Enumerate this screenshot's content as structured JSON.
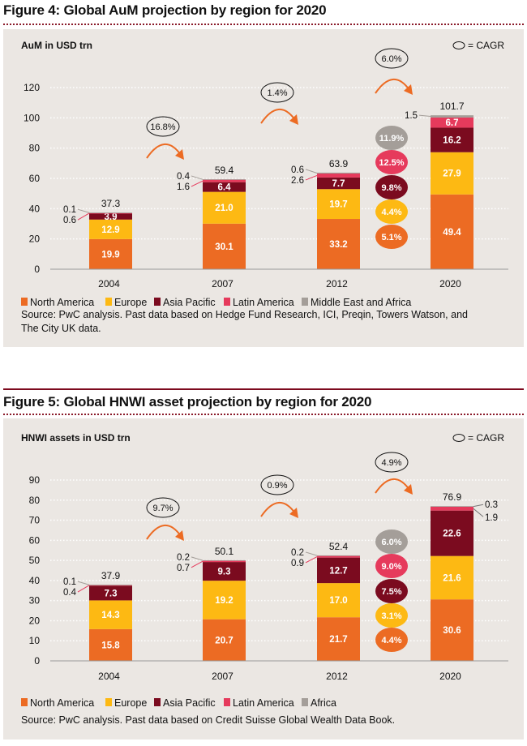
{
  "figures": [
    {
      "title": "Figure 4: Global AuM projection by region for 2020",
      "cagr_key": "= CAGR",
      "source": [
        "Source: PwC analysis. Past data based on Hedge Fund Research, ICI, Preqin, Towers Watson, and",
        "The City UK data."
      ]
    },
    {
      "title": "Figure 5: Global HNWI asset projection by region for 2020",
      "cagr_key": "= CAGR",
      "source": [
        "Source: PwC analysis. Past data based on Credit Suisse Global Wealth Data Book."
      ]
    }
  ],
  "colors": {
    "North America": "#ec6b23",
    "Europe": "#fdb913",
    "Asia Pacific": "#7b0b1f",
    "Latin America": "#e63a5c",
    "Middle East and Africa": "#a49e99",
    "Africa": "#a49e99",
    "panel": "#ebe7e3",
    "title_rule": "#7d0a1e"
  },
  "chart_data": [
    {
      "type": "bar",
      "stacked": true,
      "ylabel": "AuM in USD trn",
      "ylim": [
        0,
        120
      ],
      "yticks": [
        0,
        20,
        40,
        60,
        80,
        100,
        120
      ],
      "grid": true,
      "legend": "bottom",
      "categories": [
        "2004",
        "2007",
        "2012",
        "2020"
      ],
      "series": [
        {
          "name": "North America",
          "values": [
            19.9,
            30.1,
            33.2,
            49.4
          ]
        },
        {
          "name": "Europe",
          "values": [
            12.9,
            21.0,
            19.7,
            27.9
          ]
        },
        {
          "name": "Asia Pacific",
          "values": [
            3.9,
            6.4,
            7.7,
            16.2
          ]
        },
        {
          "name": "Latin America",
          "values": [
            0.6,
            1.6,
            2.6,
            6.7
          ]
        },
        {
          "name": "Middle East and Africa",
          "values": [
            0.1,
            0.4,
            0.6,
            1.5
          ]
        }
      ],
      "totals": [
        "37.3",
        "59.4",
        "63.9",
        "101.7"
      ],
      "period_cagr": [
        "16.8%",
        "1.4%",
        "6.0%"
      ],
      "region_cagr": [
        {
          "region": "Middle East and Africa",
          "value": "11.9%"
        },
        {
          "region": "Latin America",
          "value": "12.5%"
        },
        {
          "region": "Asia Pacific",
          "value": "9.8%"
        },
        {
          "region": "Europe",
          "value": "4.4%"
        },
        {
          "region": "North America",
          "value": "5.1%"
        }
      ]
    },
    {
      "type": "bar",
      "stacked": true,
      "ylabel": "HNWI assets in USD trn",
      "ylim": [
        0,
        90
      ],
      "yticks": [
        0,
        10,
        20,
        30,
        40,
        50,
        60,
        70,
        80,
        90
      ],
      "grid": true,
      "legend": "bottom",
      "categories": [
        "2004",
        "2007",
        "2012",
        "2020"
      ],
      "series": [
        {
          "name": "North America",
          "values": [
            15.8,
            20.7,
            21.7,
            30.6
          ]
        },
        {
          "name": "Europe",
          "values": [
            14.3,
            19.2,
            17.0,
            21.6
          ]
        },
        {
          "name": "Asia Pacific",
          "values": [
            7.3,
            9.3,
            12.7,
            22.6
          ]
        },
        {
          "name": "Latin America",
          "values": [
            0.4,
            0.7,
            0.9,
            1.9
          ]
        },
        {
          "name": "Africa",
          "values": [
            0.1,
            0.2,
            0.2,
            0.3
          ]
        }
      ],
      "totals": [
        "37.9",
        "50.1",
        "52.4",
        "76.9"
      ],
      "period_cagr": [
        "9.7%",
        "0.9%",
        "4.9%"
      ],
      "region_cagr": [
        {
          "region": "Africa",
          "value": "6.0%"
        },
        {
          "region": "Latin America",
          "value": "9.0%"
        },
        {
          "region": "Asia Pacific",
          "value": "7.5%"
        },
        {
          "region": "Europe",
          "value": "3.1%"
        },
        {
          "region": "North America",
          "value": "4.4%"
        }
      ]
    }
  ]
}
